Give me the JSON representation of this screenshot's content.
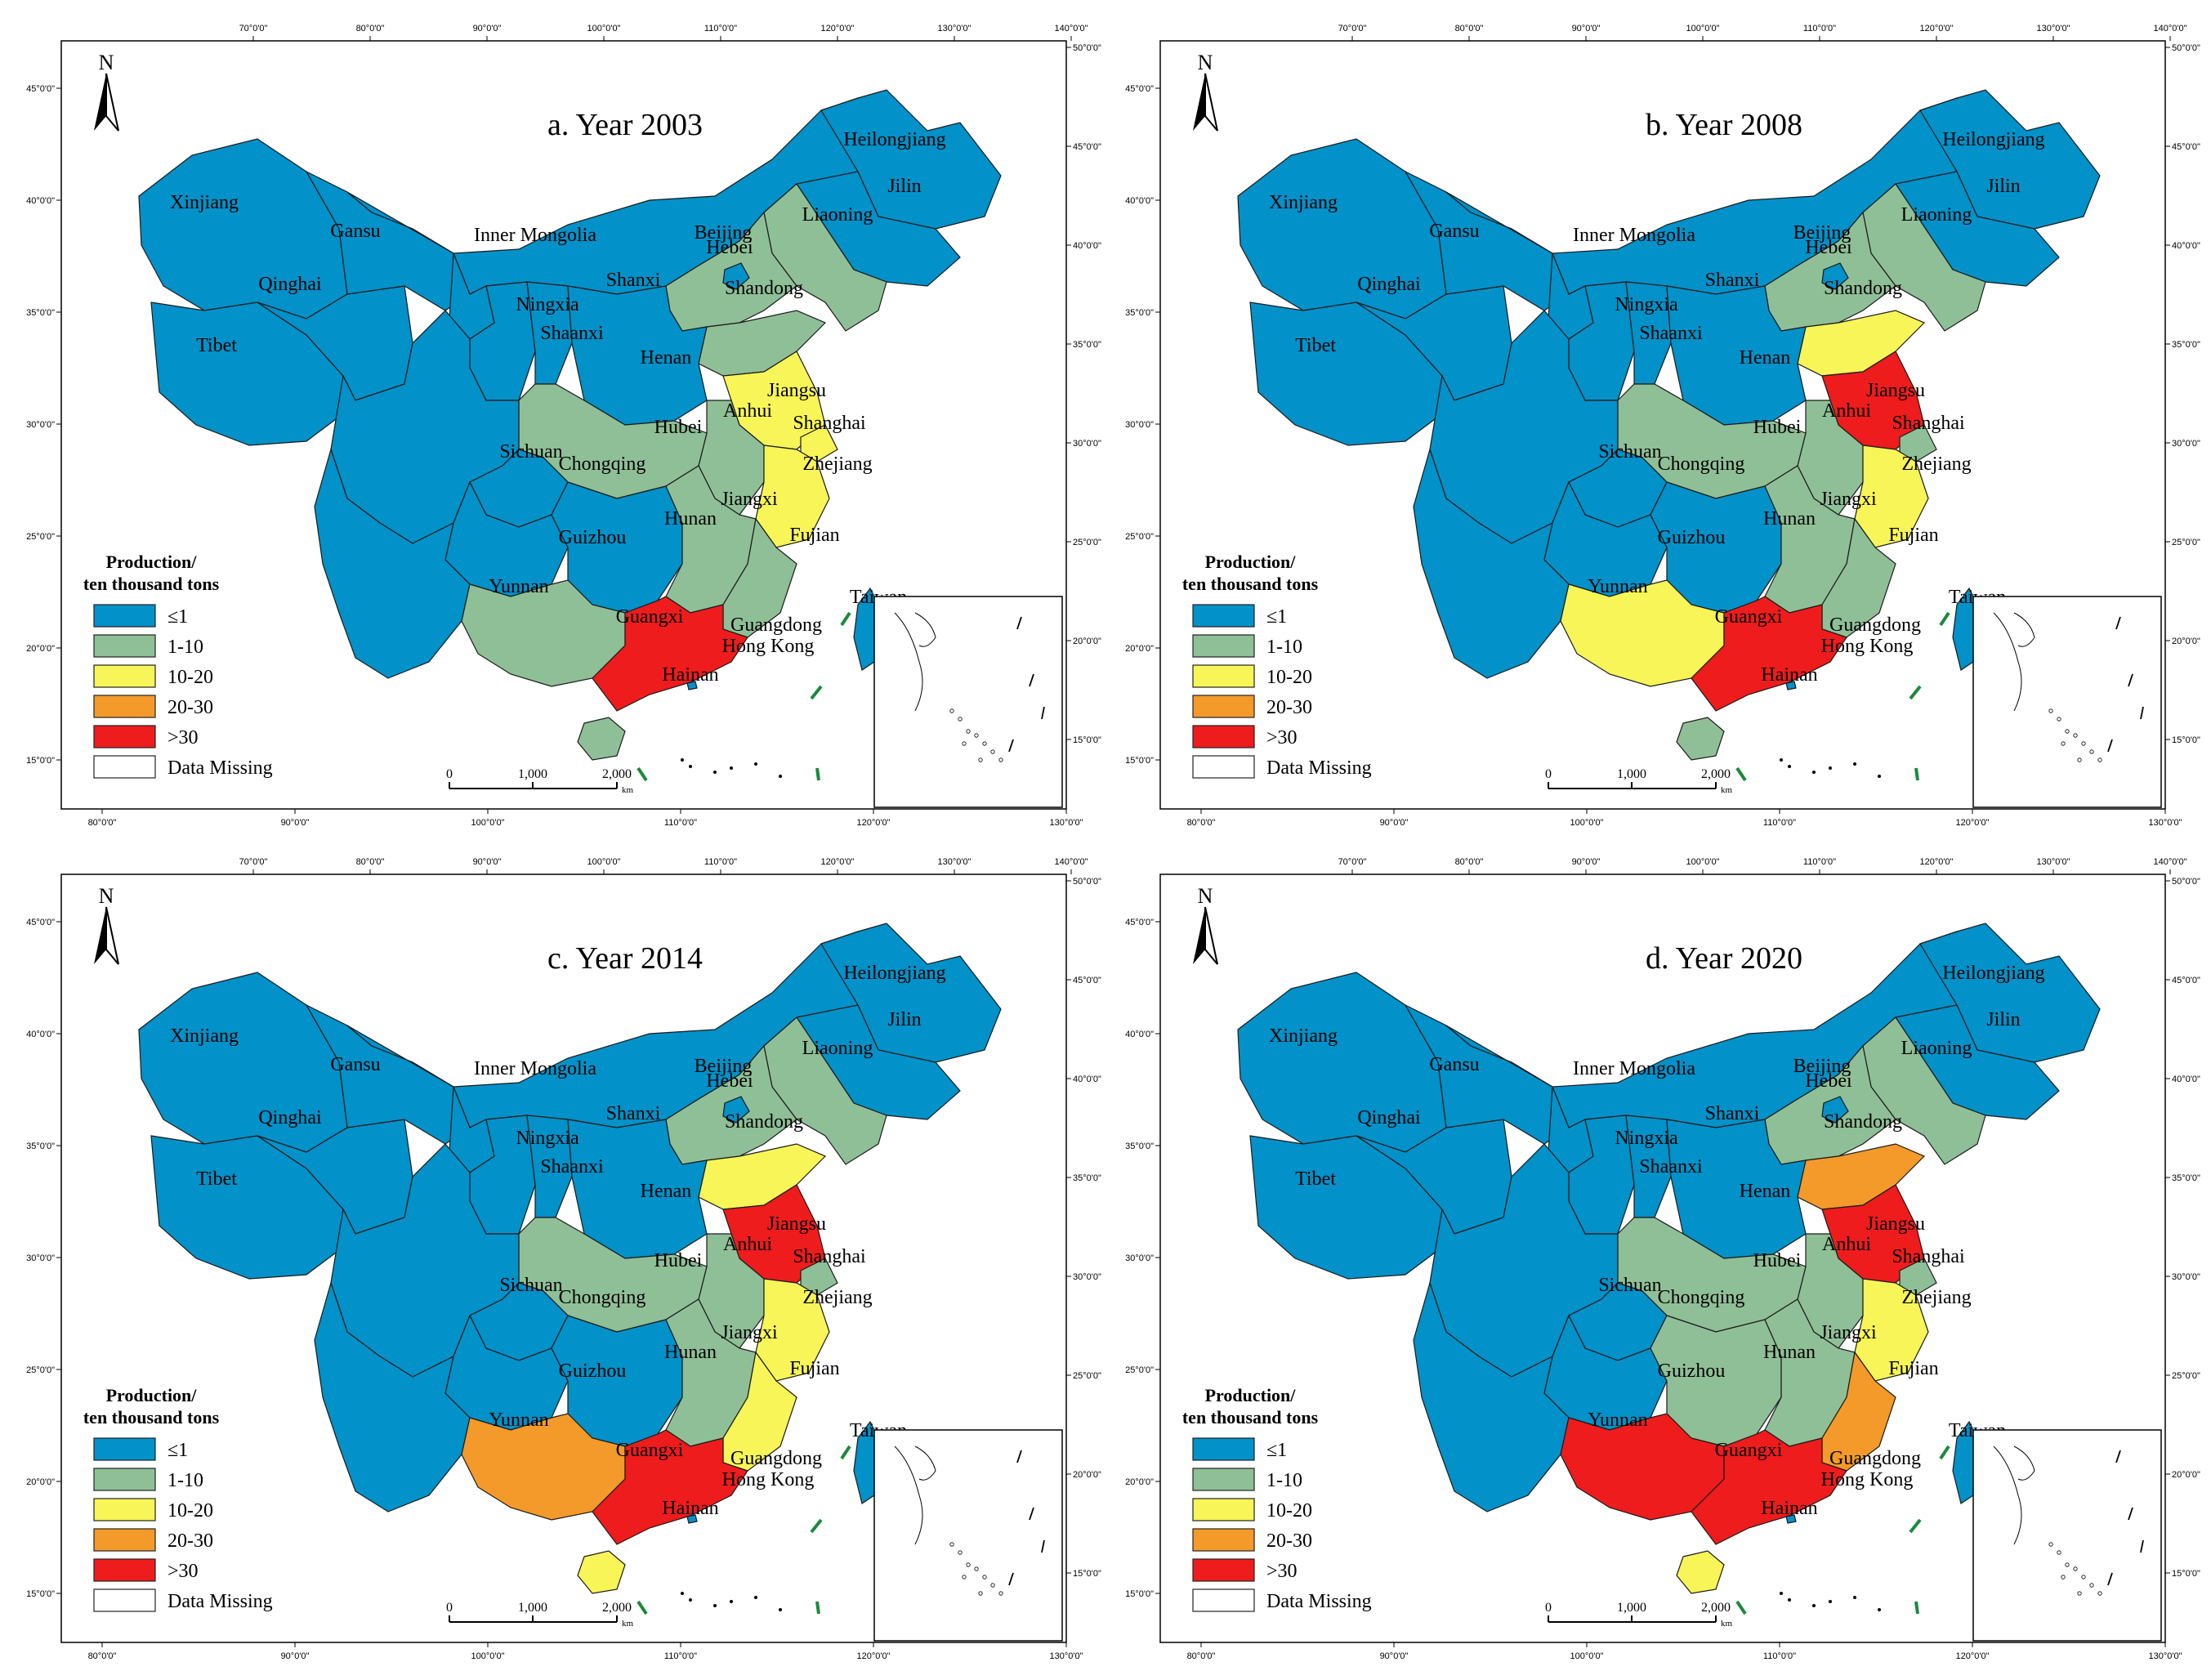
{
  "colors": {
    "le1": "#0291c8",
    "1-10": "#8fbf96",
    "10-20": "#f7f557",
    "20-30": "#f39a2a",
    "gt30": "#ee1c1c",
    "missing": "#ffffff"
  },
  "legend": {
    "title_line1": "Production/",
    "title_line2": "ten thousand tons",
    "items": [
      {
        "key": "le1",
        "label": "≤1"
      },
      {
        "key": "1-10",
        "label": "1-10"
      },
      {
        "key": "10-20",
        "label": "10-20"
      },
      {
        "key": "20-30",
        "label": "20-30"
      },
      {
        "key": "gt30",
        "label": ">30"
      },
      {
        "key": "missing",
        "label": "Data Missing"
      }
    ]
  },
  "north_label": "N",
  "scale_bar": {
    "labels": [
      "0",
      "1,000",
      "2,000"
    ],
    "unit": "km"
  },
  "axis_ticks": {
    "top": [
      "70°0'0\"",
      "80°0'0\"",
      "90°0'0\"",
      "100°0'0\"",
      "110°0'0\"",
      "120°0'0\"",
      "130°0'0\"",
      "140°0'0\""
    ],
    "bottom": [
      "80°0'0\"",
      "90°0'0\"",
      "100°0'0\"",
      "110°0'0\"",
      "120°0'0\"",
      "130°0'0\""
    ],
    "left": [
      "45°0'0\"",
      "40°0'0\"",
      "35°0'0\"",
      "30°0'0\"",
      "25°0'0\"",
      "20°0'0\"",
      "15°0'0\""
    ],
    "right": [
      "50°0'0\"",
      "45°0'0\"",
      "40°0'0\"",
      "35°0'0\"",
      "30°0'0\"",
      "25°0'0\"",
      "20°0'0\"",
      "15°0'0\""
    ]
  },
  "panels": [
    {
      "title": "a. Year 2003",
      "classes": {
        "Xinjiang": "le1",
        "Tibet": "le1",
        "Qinghai": "le1",
        "Gansu": "le1",
        "Inner Mongolia": "le1",
        "Ningxia": "le1",
        "Shaanxi": "le1",
        "Shanxi": "le1",
        "Sichuan": "le1",
        "Chongqing": "le1",
        "Yunnan": "le1",
        "Guizhou": "le1",
        "Hunan": "le1",
        "Heilongjiang": "le1",
        "Jilin": "le1",
        "Beijing": "le1",
        "Henan": "le1",
        "Taiwan": "le1",
        "Hong Kong": "le1",
        "Liaoning": "1-10",
        "Hebei": "1-10",
        "Shandong": "1-10",
        "Anhui": "1-10",
        "Hubei": "1-10",
        "Jiangxi": "1-10",
        "Fujian": "1-10",
        "Guangxi": "1-10",
        "Hainan": "1-10",
        "Jiangsu": "10-20",
        "Shanghai": "10-20",
        "Zhejiang": "10-20",
        "Guangdong": "gt30"
      }
    },
    {
      "title": "b. Year 2008",
      "classes": {
        "Xinjiang": "le1",
        "Tibet": "le1",
        "Qinghai": "le1",
        "Gansu": "le1",
        "Inner Mongolia": "le1",
        "Ningxia": "le1",
        "Shaanxi": "le1",
        "Shanxi": "le1",
        "Sichuan": "le1",
        "Chongqing": "le1",
        "Yunnan": "le1",
        "Guizhou": "le1",
        "Hunan": "le1",
        "Heilongjiang": "le1",
        "Jilin": "le1",
        "Beijing": "le1",
        "Henan": "le1",
        "Taiwan": "le1",
        "Hong Kong": "le1",
        "Liaoning": "1-10",
        "Hebei": "1-10",
        "Anhui": "1-10",
        "Hubei": "1-10",
        "Jiangxi": "1-10",
        "Fujian": "1-10",
        "Hainan": "1-10",
        "Shanghai": "1-10",
        "Shandong": "10-20",
        "Zhejiang": "10-20",
        "Guangxi": "10-20",
        "Jiangsu": "gt30",
        "Guangdong": "gt30"
      }
    },
    {
      "title": "c. Year 2014",
      "classes": {
        "Xinjiang": "le1",
        "Tibet": "le1",
        "Qinghai": "le1",
        "Gansu": "le1",
        "Inner Mongolia": "le1",
        "Ningxia": "le1",
        "Shaanxi": "le1",
        "Shanxi": "le1",
        "Sichuan": "le1",
        "Chongqing": "le1",
        "Yunnan": "le1",
        "Guizhou": "le1",
        "Hunan": "le1",
        "Heilongjiang": "le1",
        "Jilin": "le1",
        "Beijing": "le1",
        "Henan": "le1",
        "Taiwan": "le1",
        "Hong Kong": "le1",
        "Liaoning": "1-10",
        "Hebei": "1-10",
        "Anhui": "1-10",
        "Hubei": "1-10",
        "Jiangxi": "1-10",
        "Shanghai": "1-10",
        "Shandong": "10-20",
        "Zhejiang": "10-20",
        "Fujian": "10-20",
        "Hainan": "10-20",
        "Guangxi": "20-30",
        "Jiangsu": "gt30",
        "Guangdong": "gt30"
      }
    },
    {
      "title": "d. Year 2020",
      "classes": {
        "Xinjiang": "le1",
        "Tibet": "le1",
        "Qinghai": "le1",
        "Gansu": "le1",
        "Inner Mongolia": "le1",
        "Ningxia": "le1",
        "Shaanxi": "le1",
        "Shanxi": "le1",
        "Sichuan": "le1",
        "Chongqing": "le1",
        "Yunnan": "le1",
        "Guizhou": "le1",
        "Heilongjiang": "le1",
        "Jilin": "le1",
        "Beijing": "le1",
        "Henan": "le1",
        "Taiwan": "le1",
        "Hong Kong": "le1",
        "Liaoning": "1-10",
        "Hebei": "1-10",
        "Anhui": "1-10",
        "Hubei": "1-10",
        "Jiangxi": "1-10",
        "Hunan": "1-10",
        "Shanghai": "1-10",
        "Zhejiang": "10-20",
        "Hainan": "10-20",
        "Shandong": "20-30",
        "Fujian": "20-30",
        "Jiangsu": "gt30",
        "Guangdong": "gt30",
        "Guangxi": "gt30"
      }
    }
  ],
  "province_labels": [
    "Heilongjiang",
    "Jilin",
    "Liaoning",
    "Xinjiang",
    "Gansu",
    "Inner Mongolia",
    "Beijing",
    "Hebei",
    "Shanxi",
    "Ningxia",
    "Qinghai",
    "Shandong",
    "Shaanxi",
    "Tibet",
    "Henan",
    "Jiangsu",
    "Anhui",
    "Shanghai",
    "Hubei",
    "Sichuan",
    "Chongqing",
    "Zhejiang",
    "Jiangxi",
    "Hunan",
    "Guizhou",
    "Fujian",
    "Yunnan",
    "Taiwan",
    "Guangxi",
    "Guangdong",
    "Hong Kong",
    "Hainan"
  ]
}
